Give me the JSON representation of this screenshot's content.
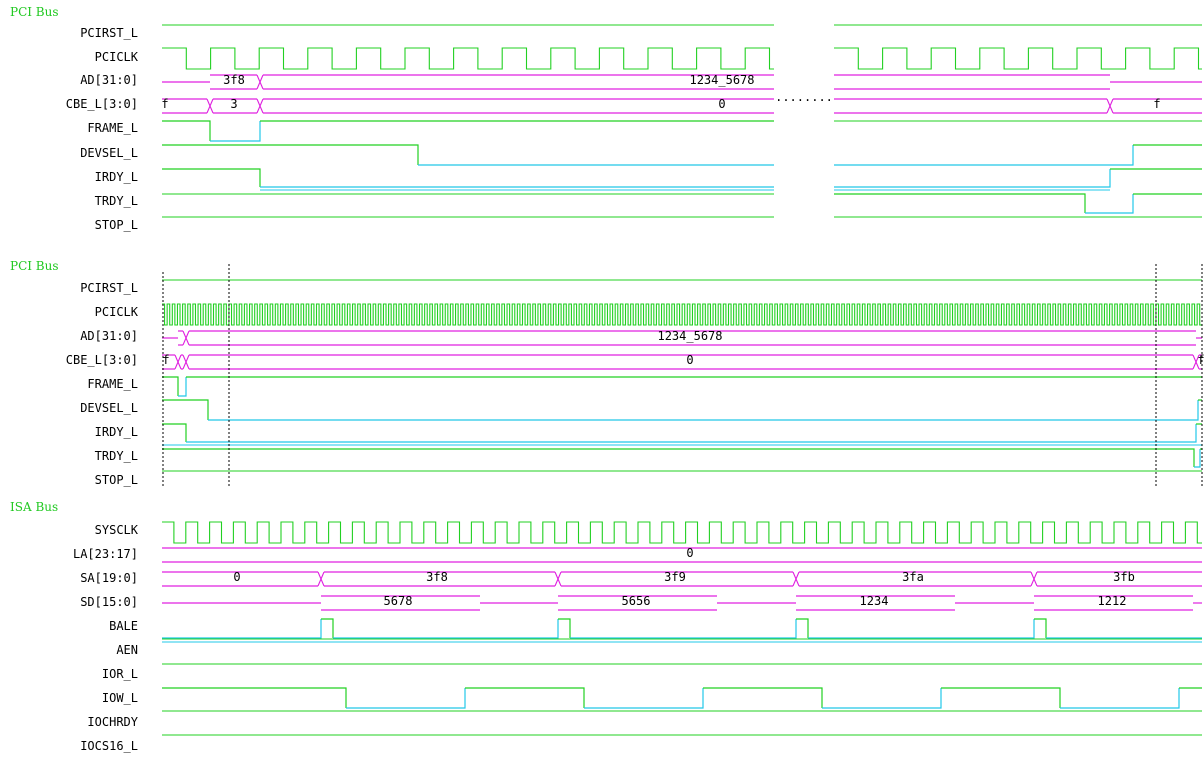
{
  "colors": {
    "background": "#ffffff",
    "group_title": "#1fc81f",
    "wave_high": "#22d022",
    "wave_low": "#22c8e8",
    "bus": "#e020e0",
    "marker": "#000000",
    "label": "#000000"
  },
  "gap_marker": "........",
  "groups": [
    {
      "title": "PCI Bus",
      "signals": [
        {
          "name": "PCIRST_L"
        },
        {
          "name": "PCICLK"
        },
        {
          "name": "AD[31:0]",
          "values": [
            "3f8",
            "1234_5678"
          ]
        },
        {
          "name": "CBE_L[3:0]",
          "values": [
            "f",
            "3",
            "0",
            "f"
          ]
        },
        {
          "name": "FRAME_L"
        },
        {
          "name": "DEVSEL_L"
        },
        {
          "name": "IRDY_L"
        },
        {
          "name": "TRDY_L"
        },
        {
          "name": "STOP_L"
        }
      ]
    },
    {
      "title": "PCI Bus",
      "signals": [
        {
          "name": "PCIRST_L"
        },
        {
          "name": "PCICLK"
        },
        {
          "name": "AD[31:0]",
          "values": [
            "1234_5678"
          ]
        },
        {
          "name": "CBE_L[3:0]",
          "values": [
            "f",
            "0",
            "f"
          ]
        },
        {
          "name": "FRAME_L"
        },
        {
          "name": "DEVSEL_L"
        },
        {
          "name": "IRDY_L"
        },
        {
          "name": "TRDY_L"
        },
        {
          "name": "STOP_L"
        }
      ]
    },
    {
      "title": "ISA Bus",
      "signals": [
        {
          "name": "SYSCLK"
        },
        {
          "name": "LA[23:17]",
          "values": [
            "0"
          ]
        },
        {
          "name": "SA[19:0]",
          "values": [
            "0",
            "3f8",
            "3f9",
            "3fa",
            "3fb"
          ]
        },
        {
          "name": "SD[15:0]",
          "values": [
            "5678",
            "5656",
            "1234",
            "1212"
          ]
        },
        {
          "name": "BALE"
        },
        {
          "name": "AEN"
        },
        {
          "name": "IOR_L"
        },
        {
          "name": "IOW_L"
        },
        {
          "name": "IOCHRDY"
        },
        {
          "name": "IOCS16_L"
        }
      ]
    }
  ]
}
